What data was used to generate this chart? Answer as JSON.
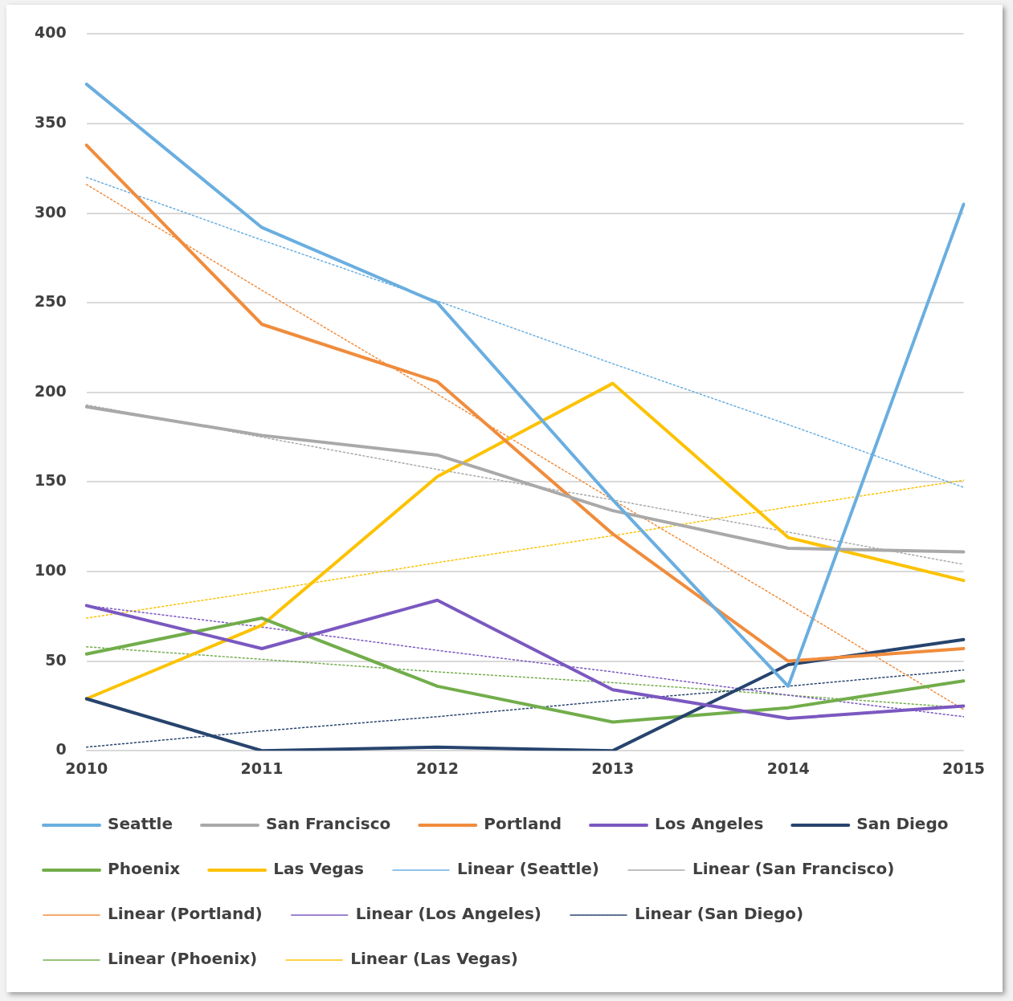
{
  "chart_data": {
    "type": "line",
    "categories": [
      "2010",
      "2011",
      "2012",
      "2013",
      "2014",
      "2015"
    ],
    "ylim": [
      0,
      400
    ],
    "yticks": [
      0,
      50,
      100,
      150,
      200,
      250,
      300,
      350,
      400
    ],
    "grid": "y",
    "legend": "bottom",
    "marker": "none",
    "series": [
      {
        "name": "Seattle",
        "color": "#6aaee0",
        "values": [
          372,
          292,
          250,
          140,
          36,
          305
        ]
      },
      {
        "name": "San Francisco",
        "color": "#a9a9a9",
        "values": [
          192,
          176,
          165,
          134,
          113,
          111
        ]
      },
      {
        "name": "Portland",
        "color": "#f08c3c",
        "values": [
          338,
          238,
          206,
          121,
          50,
          57
        ]
      },
      {
        "name": "Los Angeles",
        "color": "#7b58c0",
        "values": [
          81,
          57,
          84,
          34,
          18,
          25
        ]
      },
      {
        "name": "San Diego",
        "color": "#27446e",
        "values": [
          29,
          0,
          2,
          0,
          48,
          62
        ]
      },
      {
        "name": "Phoenix",
        "color": "#72ad4b",
        "values": [
          54,
          74,
          36,
          16,
          24,
          39
        ]
      },
      {
        "name": "Las Vegas",
        "color": "#fcc200",
        "values": [
          29,
          70,
          153,
          205,
          119,
          95
        ]
      },
      {
        "name": "Linear (Seattle)",
        "color": "#6aaee0",
        "line_style": "dotted",
        "values": [
          320,
          285,
          251,
          216,
          182,
          147
        ]
      },
      {
        "name": "Linear (San Francisco)",
        "color": "#a9a9a9",
        "line_style": "dotted",
        "values": [
          193,
          175,
          157,
          140,
          122,
          104
        ]
      },
      {
        "name": "Linear (Portland)",
        "color": "#f08c3c",
        "line_style": "dotted",
        "values": [
          316,
          257,
          199,
          140,
          82,
          23
        ]
      },
      {
        "name": "Linear (Los Angeles)",
        "color": "#7b58c0",
        "line_style": "dotted",
        "values": [
          81,
          69,
          56,
          44,
          31,
          19
        ]
      },
      {
        "name": "Linear (San Diego)",
        "color": "#27446e",
        "line_style": "dotted",
        "values": [
          2,
          11,
          19,
          28,
          36,
          45
        ]
      },
      {
        "name": "Linear (Phoenix)",
        "color": "#72ad4b",
        "line_style": "dotted",
        "values": [
          58,
          51,
          44,
          38,
          31,
          24
        ]
      },
      {
        "name": "Linear (Las Vegas)",
        "color": "#fcc200",
        "line_style": "dotted",
        "values": [
          74,
          89,
          105,
          120,
          136,
          151
        ]
      }
    ]
  }
}
